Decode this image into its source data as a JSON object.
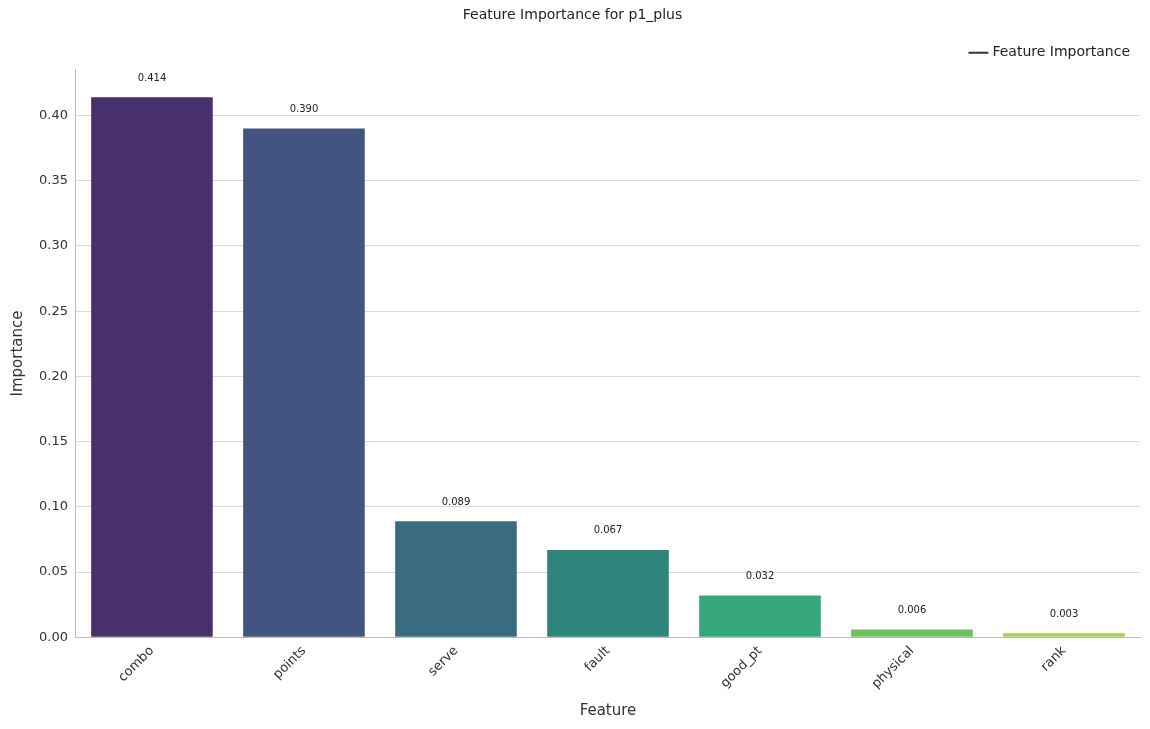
{
  "chart_data": {
    "type": "bar",
    "title": "Feature Importance for p1_plus",
    "xlabel": "Feature",
    "ylabel": "Importance",
    "categories": [
      "combo",
      "points",
      "serve",
      "fault",
      "good_pt",
      "physical",
      "rank"
    ],
    "series": [
      {
        "name": "Feature Importance",
        "color": "#333333",
        "values": [
          0.414,
          0.39,
          0.089,
          0.067,
          0.032,
          0.006,
          0.003
        ],
        "colors": [
          "#48306f",
          "#435480",
          "#3a6c80",
          "#2e857c",
          "#35a77a",
          "#6cc15a",
          "#a6d14a"
        ],
        "value_labels": [
          "0.414",
          "0.390",
          "0.089",
          "0.067",
          "0.032",
          "0.006",
          "0.003"
        ]
      }
    ],
    "ylim": [
      0,
      0.435
    ],
    "yticks": [
      {
        "value": 0,
        "label": "0.00"
      },
      {
        "value": 0.05,
        "label": "0.05"
      },
      {
        "value": 0.1,
        "label": "0.10"
      },
      {
        "value": 0.15,
        "label": "0.15"
      },
      {
        "value": 0.2,
        "label": "0.20"
      },
      {
        "value": 0.25,
        "label": "0.25"
      },
      {
        "value": 0.3,
        "label": "0.30"
      },
      {
        "value": 0.35,
        "label": "0.35"
      },
      {
        "value": 0.4,
        "label": "0.40"
      }
    ],
    "grid": "y",
    "legend": "top right"
  }
}
